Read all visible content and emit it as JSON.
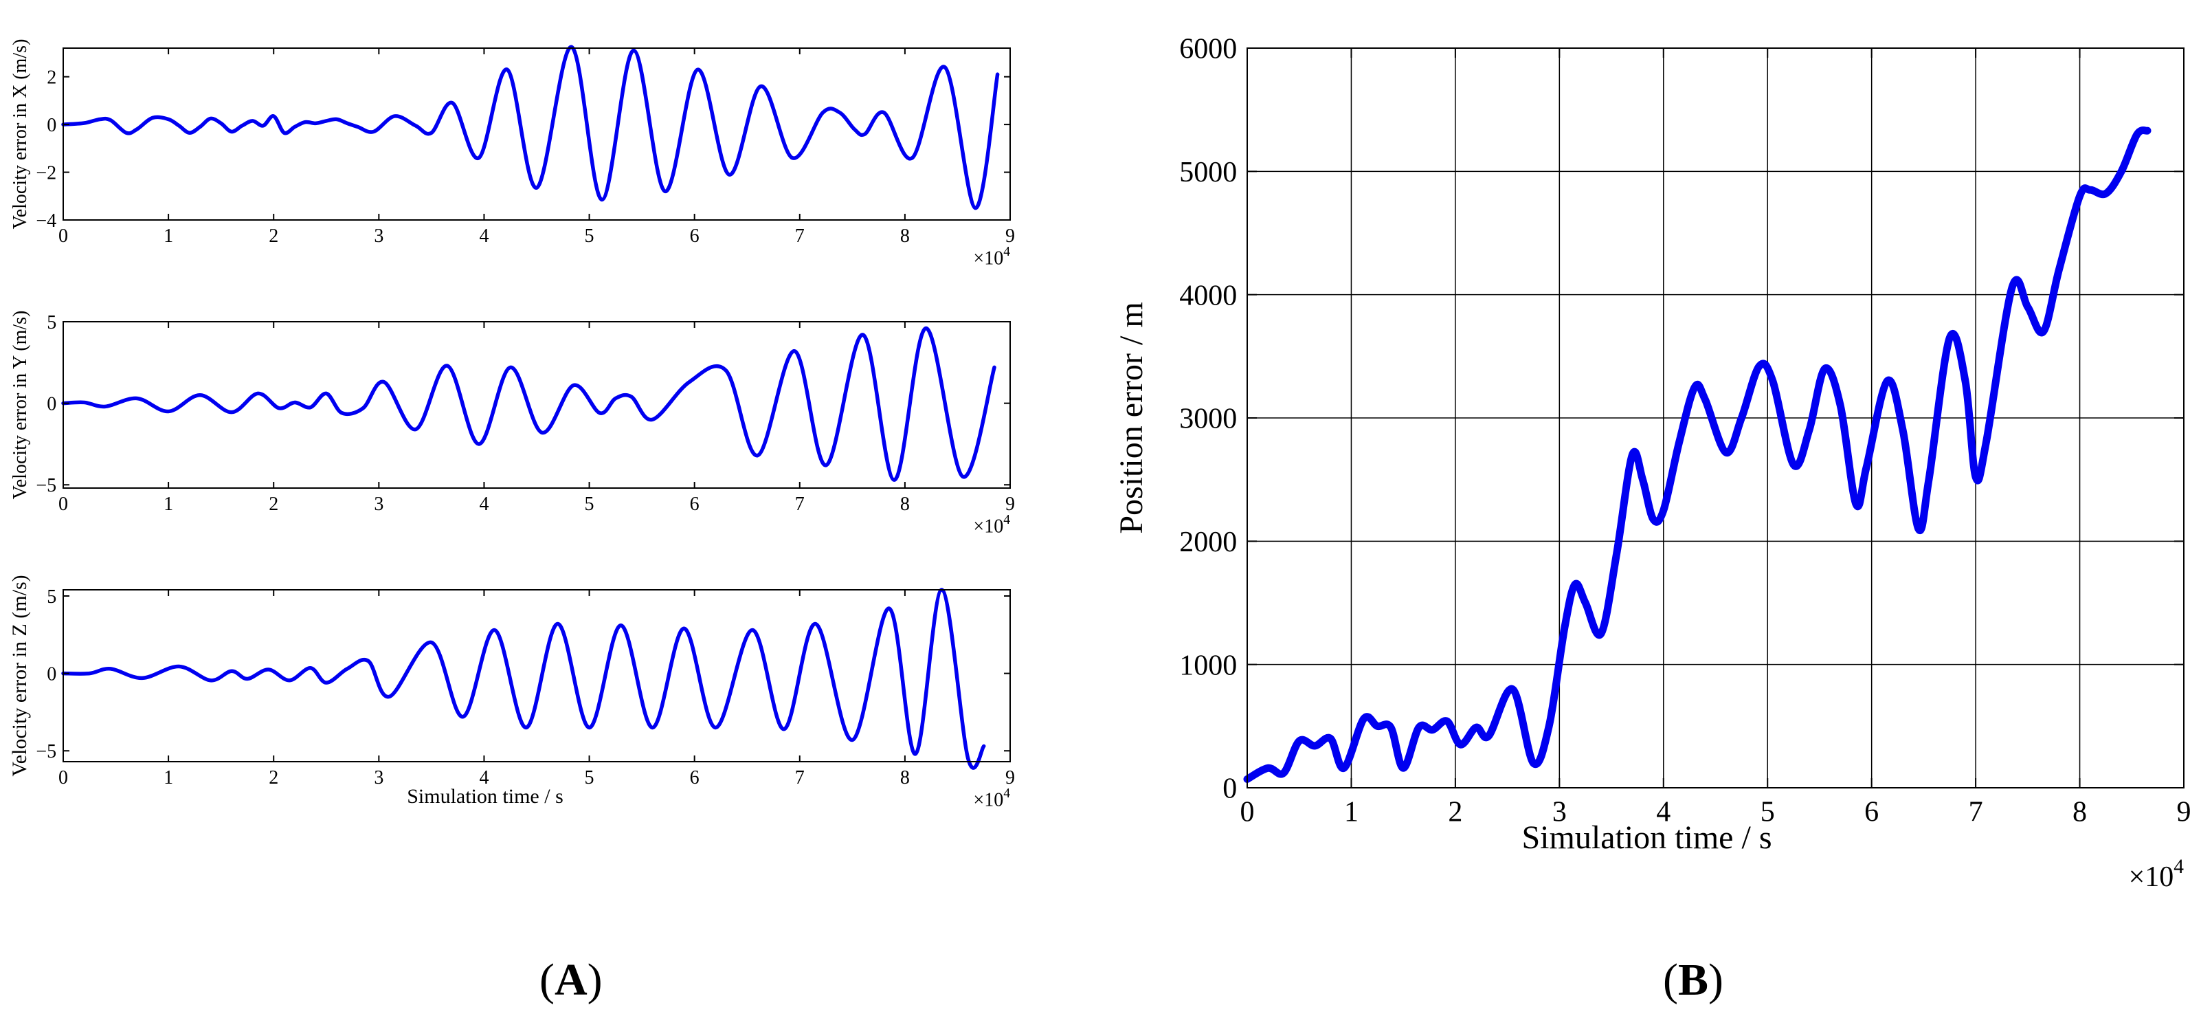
{
  "panels": {
    "a_label": "A",
    "b_label": "B"
  },
  "colors": {
    "series": "#0000f0",
    "axis": "#000000",
    "grid": "#000000",
    "background": "#ffffff"
  },
  "chart_data": [
    {
      "id": "vx",
      "type": "line",
      "title": "",
      "xlabel": "",
      "ylabel": "Velocity error in X (m/s)",
      "xlim": [
        0,
        9
      ],
      "ylim": [
        -4,
        3.2
      ],
      "xticks": [
        0,
        1,
        2,
        3,
        4,
        5,
        6,
        7,
        8,
        9
      ],
      "yticks": [
        -4,
        -2,
        0,
        2
      ],
      "x_multiplier": "×10",
      "x_multiplier_exp": "4",
      "grid": false,
      "legend": "none",
      "series": [
        {
          "points": [
            [
              0,
              0
            ],
            [
              0.2,
              0.06
            ],
            [
              0.35,
              0.22
            ],
            [
              0.45,
              0.18
            ],
            [
              0.6,
              -0.35
            ],
            [
              0.7,
              -0.2
            ],
            [
              0.85,
              0.28
            ],
            [
              1.0,
              0.22
            ],
            [
              1.1,
              -0.05
            ],
            [
              1.2,
              -0.35
            ],
            [
              1.3,
              -0.1
            ],
            [
              1.4,
              0.25
            ],
            [
              1.5,
              0.05
            ],
            [
              1.6,
              -0.3
            ],
            [
              1.7,
              -0.05
            ],
            [
              1.8,
              0.15
            ],
            [
              1.9,
              -0.05
            ],
            [
              2.0,
              0.35
            ],
            [
              2.1,
              -0.35
            ],
            [
              2.2,
              -0.1
            ],
            [
              2.3,
              0.1
            ],
            [
              2.4,
              0.05
            ],
            [
              2.5,
              0.15
            ],
            [
              2.6,
              0.22
            ],
            [
              2.7,
              0.05
            ],
            [
              2.8,
              -0.1
            ],
            [
              2.95,
              -0.3
            ],
            [
              3.15,
              0.35
            ],
            [
              3.35,
              -0.05
            ],
            [
              3.5,
              -0.35
            ],
            [
              3.7,
              0.9
            ],
            [
              3.95,
              -1.4
            ],
            [
              4.22,
              2.3
            ],
            [
              4.5,
              -2.65
            ],
            [
              4.83,
              3.25
            ],
            [
              5.12,
              -3.15
            ],
            [
              5.42,
              3.1
            ],
            [
              5.72,
              -2.8
            ],
            [
              6.03,
              2.3
            ],
            [
              6.33,
              -2.1
            ],
            [
              6.63,
              1.6
            ],
            [
              6.93,
              -1.4
            ],
            [
              7.22,
              0.5
            ],
            [
              7.38,
              0.5
            ],
            [
              7.52,
              -0.2
            ],
            [
              7.62,
              -0.4
            ],
            [
              7.8,
              0.5
            ],
            [
              8.07,
              -1.4
            ],
            [
              8.38,
              2.4
            ],
            [
              8.67,
              -3.5
            ],
            [
              8.88,
              2.1
            ]
          ]
        }
      ]
    },
    {
      "id": "vy",
      "type": "line",
      "title": "",
      "xlabel": "",
      "ylabel": "Velocity error in Y (m/s)",
      "xlim": [
        0,
        9
      ],
      "ylim": [
        -5.2,
        5
      ],
      "xticks": [
        0,
        1,
        2,
        3,
        4,
        5,
        6,
        7,
        8,
        9
      ],
      "yticks": [
        -5,
        0,
        5
      ],
      "x_multiplier": "×10",
      "x_multiplier_exp": "4",
      "grid": false,
      "legend": "none",
      "series": [
        {
          "points": [
            [
              0,
              0
            ],
            [
              0.2,
              0.05
            ],
            [
              0.4,
              -0.2
            ],
            [
              0.7,
              0.3
            ],
            [
              1.0,
              -0.5
            ],
            [
              1.3,
              0.5
            ],
            [
              1.6,
              -0.55
            ],
            [
              1.85,
              0.6
            ],
            [
              2.05,
              -0.3
            ],
            [
              2.2,
              0.05
            ],
            [
              2.35,
              -0.25
            ],
            [
              2.5,
              0.6
            ],
            [
              2.65,
              -0.6
            ],
            [
              2.85,
              -0.3
            ],
            [
              3.05,
              1.3
            ],
            [
              3.35,
              -1.6
            ],
            [
              3.65,
              2.3
            ],
            [
              3.95,
              -2.5
            ],
            [
              4.25,
              2.2
            ],
            [
              4.55,
              -1.8
            ],
            [
              4.85,
              1.1
            ],
            [
              5.1,
              -0.6
            ],
            [
              5.25,
              0.3
            ],
            [
              5.4,
              0.4
            ],
            [
              5.6,
              -1.0
            ],
            [
              5.95,
              1.3
            ],
            [
              6.3,
              2.0
            ],
            [
              6.6,
              -3.2
            ],
            [
              6.95,
              3.2
            ],
            [
              7.25,
              -3.8
            ],
            [
              7.6,
              4.2
            ],
            [
              7.9,
              -4.7
            ],
            [
              8.2,
              4.6
            ],
            [
              8.55,
              -4.5
            ],
            [
              8.85,
              2.2
            ]
          ]
        }
      ]
    },
    {
      "id": "vz",
      "type": "line",
      "title": "",
      "xlabel": "Simulation time / s",
      "ylabel": "Velocity error in Z (m/s)",
      "xlim": [
        0,
        9
      ],
      "ylim": [
        -5.7,
        5.4
      ],
      "xticks": [
        0,
        1,
        2,
        3,
        4,
        5,
        6,
        7,
        8,
        9
      ],
      "yticks": [
        -5,
        0,
        5
      ],
      "x_multiplier": "×10",
      "x_multiplier_exp": "4",
      "grid": false,
      "legend": "none",
      "series": [
        {
          "points": [
            [
              0,
              0
            ],
            [
              0.25,
              0.0
            ],
            [
              0.45,
              0.3
            ],
            [
              0.75,
              -0.3
            ],
            [
              1.1,
              0.45
            ],
            [
              1.4,
              -0.45
            ],
            [
              1.6,
              0.15
            ],
            [
              1.75,
              -0.35
            ],
            [
              1.95,
              0.25
            ],
            [
              2.15,
              -0.45
            ],
            [
              2.35,
              0.35
            ],
            [
              2.5,
              -0.6
            ],
            [
              2.7,
              0.3
            ],
            [
              2.9,
              0.8
            ],
            [
              3.1,
              -1.5
            ],
            [
              3.5,
              2.0
            ],
            [
              3.8,
              -2.8
            ],
            [
              4.1,
              2.8
            ],
            [
              4.4,
              -3.5
            ],
            [
              4.7,
              3.2
            ],
            [
              5.0,
              -3.5
            ],
            [
              5.3,
              3.1
            ],
            [
              5.6,
              -3.5
            ],
            [
              5.9,
              2.9
            ],
            [
              6.2,
              -3.5
            ],
            [
              6.55,
              2.8
            ],
            [
              6.85,
              -3.6
            ],
            [
              7.15,
              3.2
            ],
            [
              7.5,
              -4.3
            ],
            [
              7.85,
              4.2
            ],
            [
              8.1,
              -5.2
            ],
            [
              8.35,
              5.4
            ],
            [
              8.6,
              -5.5
            ],
            [
              8.75,
              -4.7
            ]
          ]
        }
      ]
    },
    {
      "id": "pos",
      "type": "line",
      "title": "",
      "xlabel": "Simulation time / s",
      "ylabel": "Position error / m",
      "xlim": [
        0,
        9
      ],
      "ylim": [
        0,
        6000
      ],
      "xticks": [
        0,
        1,
        2,
        3,
        4,
        5,
        6,
        7,
        8,
        9
      ],
      "yticks": [
        0,
        1000,
        2000,
        3000,
        4000,
        5000,
        6000
      ],
      "x_multiplier": "×10",
      "x_multiplier_exp": "4",
      "grid": true,
      "legend": "none",
      "series": [
        {
          "points": [
            [
              0,
              70
            ],
            [
              0.2,
              160
            ],
            [
              0.35,
              120
            ],
            [
              0.5,
              380
            ],
            [
              0.65,
              340
            ],
            [
              0.8,
              400
            ],
            [
              0.93,
              160
            ],
            [
              1.12,
              560
            ],
            [
              1.25,
              500
            ],
            [
              1.38,
              490
            ],
            [
              1.5,
              160
            ],
            [
              1.65,
              490
            ],
            [
              1.78,
              470
            ],
            [
              1.92,
              540
            ],
            [
              2.05,
              350
            ],
            [
              2.2,
              490
            ],
            [
              2.32,
              420
            ],
            [
              2.55,
              800
            ],
            [
              2.75,
              200
            ],
            [
              2.9,
              500
            ],
            [
              3.05,
              1300
            ],
            [
              3.15,
              1650
            ],
            [
              3.25,
              1500
            ],
            [
              3.4,
              1250
            ],
            [
              3.55,
              1900
            ],
            [
              3.7,
              2700
            ],
            [
              3.8,
              2500
            ],
            [
              3.9,
              2180
            ],
            [
              4.0,
              2250
            ],
            [
              4.15,
              2800
            ],
            [
              4.3,
              3250
            ],
            [
              4.4,
              3150
            ],
            [
              4.6,
              2720
            ],
            [
              4.75,
              3000
            ],
            [
              4.92,
              3420
            ],
            [
              5.05,
              3300
            ],
            [
              5.25,
              2620
            ],
            [
              5.4,
              2900
            ],
            [
              5.55,
              3400
            ],
            [
              5.7,
              3100
            ],
            [
              5.85,
              2300
            ],
            [
              5.95,
              2600
            ],
            [
              6.15,
              3300
            ],
            [
              6.3,
              2900
            ],
            [
              6.45,
              2100
            ],
            [
              6.55,
              2500
            ],
            [
              6.75,
              3650
            ],
            [
              6.9,
              3300
            ],
            [
              7.0,
              2520
            ],
            [
              7.1,
              2800
            ],
            [
              7.35,
              4060
            ],
            [
              7.5,
              3900
            ],
            [
              7.65,
              3700
            ],
            [
              7.8,
              4200
            ],
            [
              8.0,
              4800
            ],
            [
              8.1,
              4850
            ],
            [
              8.25,
              4820
            ],
            [
              8.4,
              5000
            ],
            [
              8.55,
              5300
            ],
            [
              8.65,
              5330
            ]
          ]
        }
      ]
    }
  ]
}
